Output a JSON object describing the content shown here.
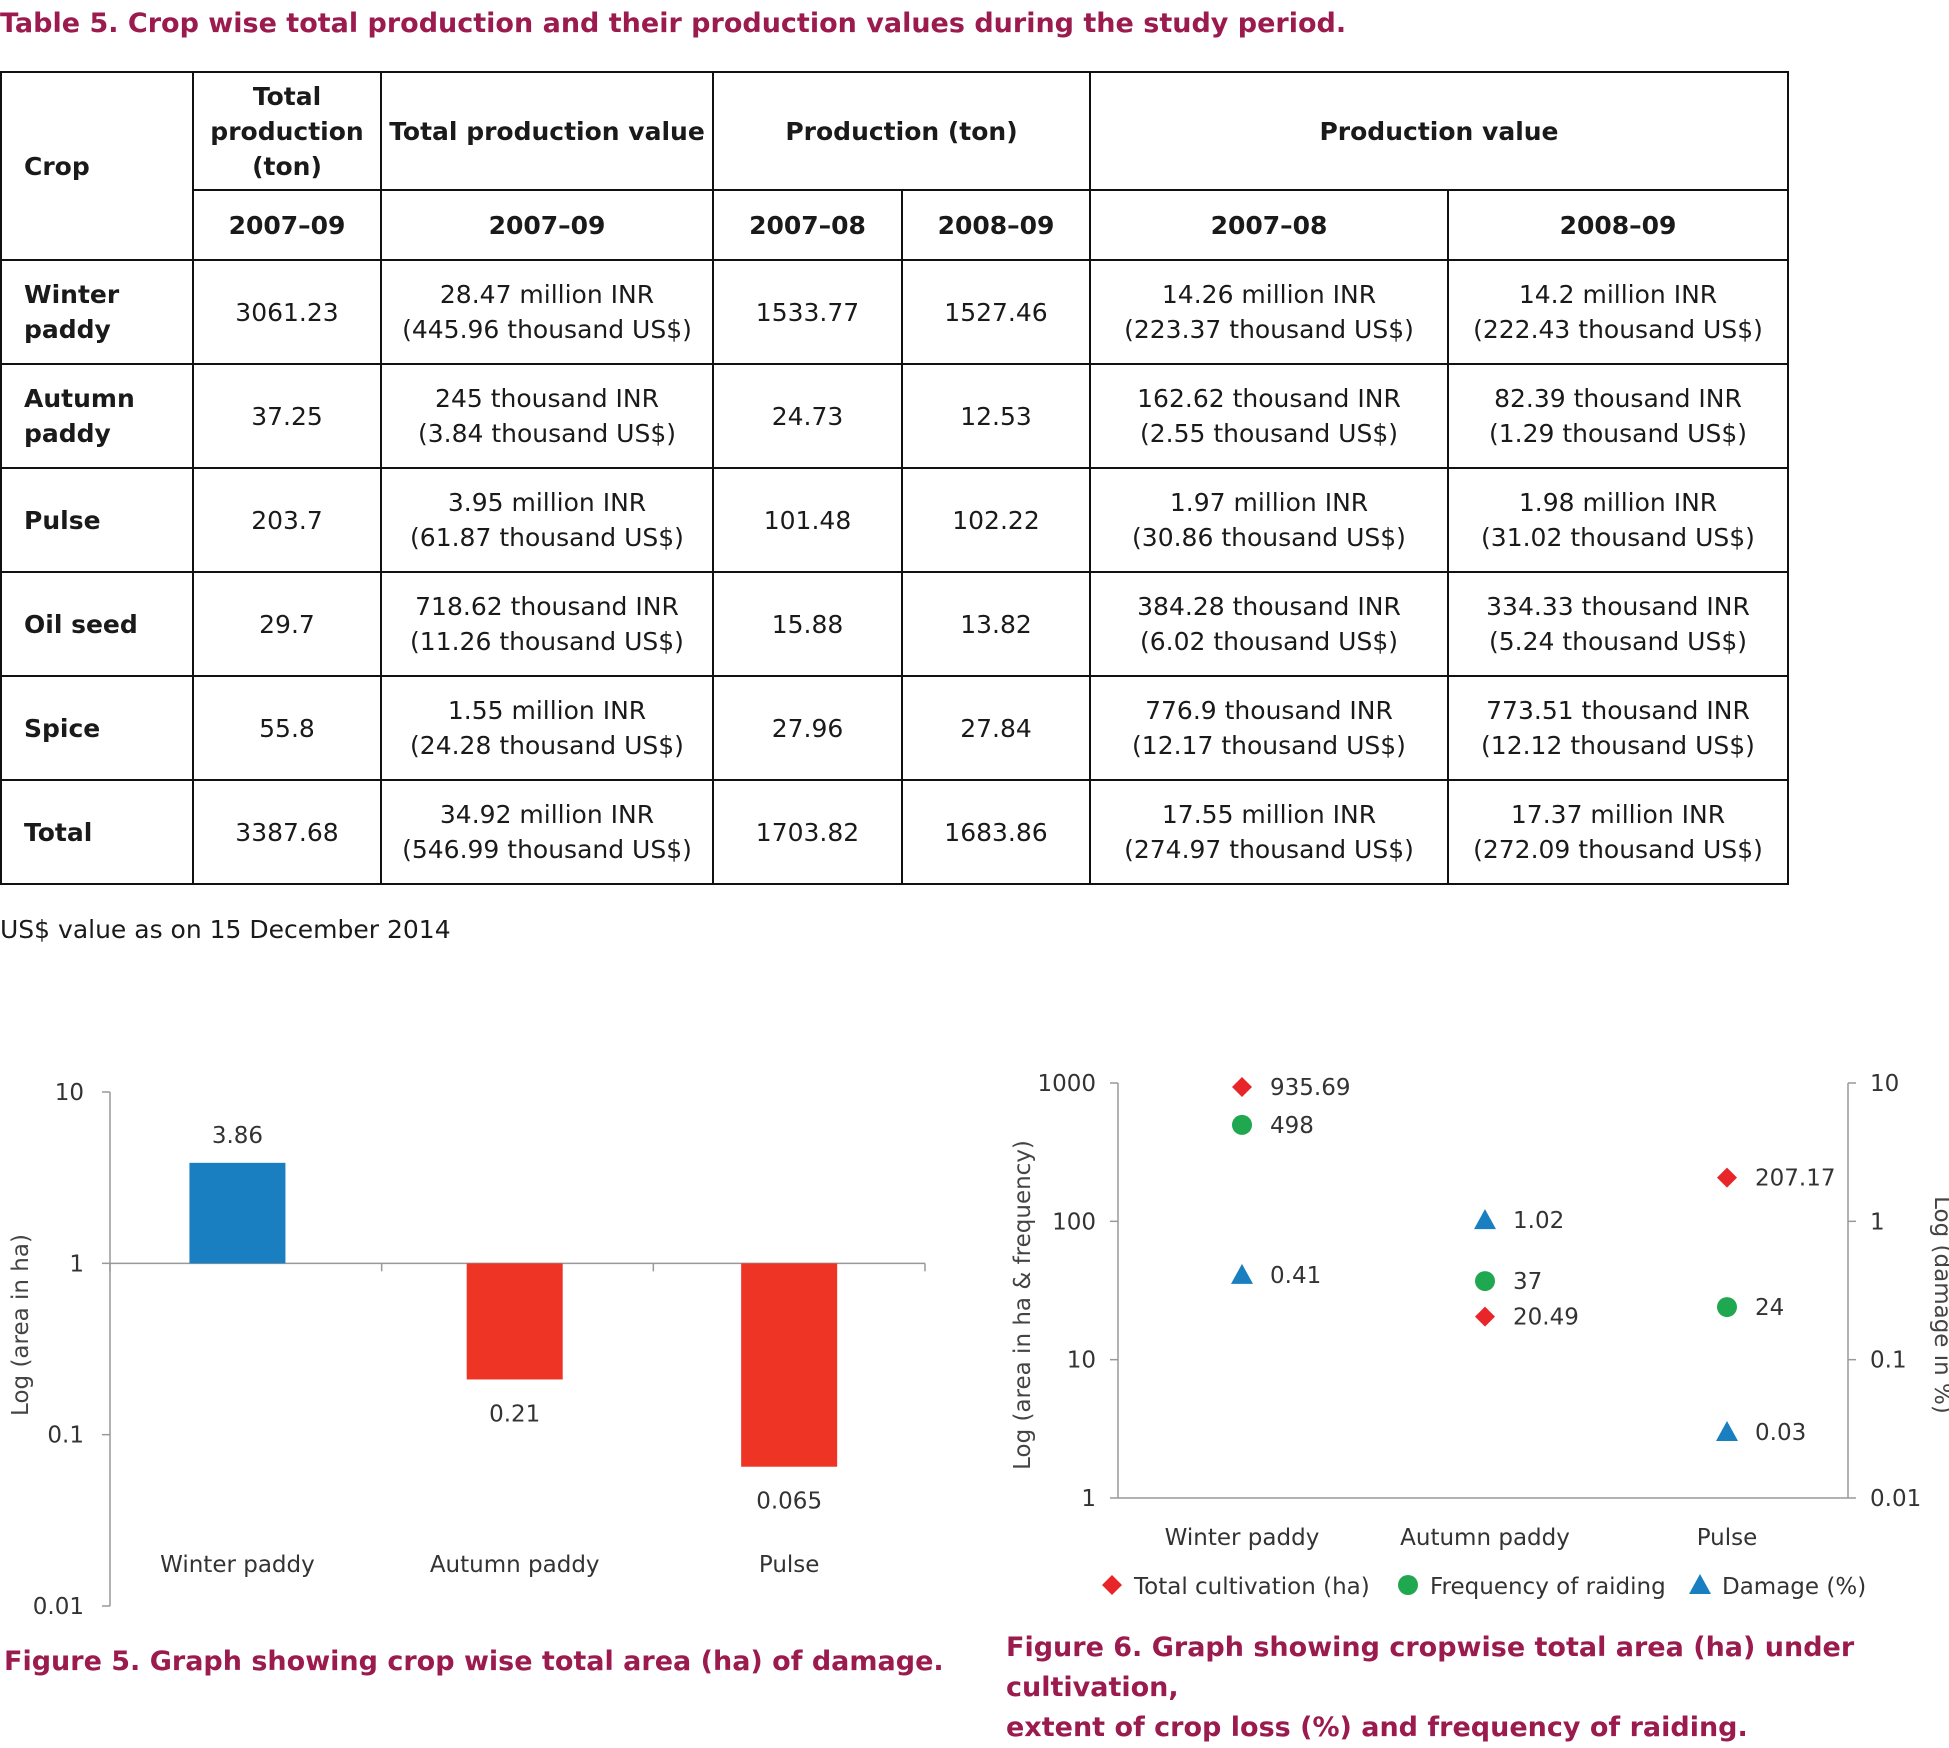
{
  "table": {
    "caption": "Table 5. Crop wise total production and their production values during the study period.",
    "headers": {
      "crop": "Crop",
      "total_production": "Total production (ton)",
      "total_production_value": "Total production value",
      "production": "Production (ton)",
      "production_value": "Production value",
      "period_all": "2007–09",
      "period_all2": "2007–09",
      "period_1": "2007–08",
      "period_2": "2008–09",
      "period_3": "2007–08",
      "period_4": "2008–09"
    },
    "rows": [
      {
        "crop": "Winter paddy",
        "total": "3061.23",
        "value_inr": "28.47 million INR",
        "value_usd": "(445.96 thousand US$)",
        "p1": "1533.77",
        "p2": "1527.46",
        "v1_inr": "14.26 million INR",
        "v1_usd": "(223.37 thousand US$)",
        "v2_inr": "14.2 million INR",
        "v2_usd": "(222.43 thousand US$)"
      },
      {
        "crop": "Autumn paddy",
        "total": "37.25",
        "value_inr": "245 thousand INR",
        "value_usd": "(3.84 thousand US$)",
        "p1": "24.73",
        "p2": "12.53",
        "v1_inr": "162.62 thousand INR",
        "v1_usd": "(2.55 thousand US$)",
        "v2_inr": "82.39 thousand INR",
        "v2_usd": "(1.29 thousand US$)"
      },
      {
        "crop": "Pulse",
        "total": "203.7",
        "value_inr": "3.95 million INR",
        "value_usd": "(61.87 thousand US$)",
        "p1": "101.48",
        "p2": "102.22",
        "v1_inr": "1.97 million INR",
        "v1_usd": "(30.86 thousand US$)",
        "v2_inr": "1.98 million INR",
        "v2_usd": "(31.02 thousand US$)"
      },
      {
        "crop": "Oil seed",
        "total": "29.7",
        "value_inr": "718.62 thousand INR",
        "value_usd": "(11.26 thousand US$)",
        "p1": "15.88",
        "p2": "13.82",
        "v1_inr": "384.28 thousand INR",
        "v1_usd": "(6.02 thousand US$)",
        "v2_inr": "334.33 thousand INR",
        "v2_usd": "(5.24 thousand US$)"
      },
      {
        "crop": "Spice",
        "total": "55.8",
        "value_inr": "1.55 million INR",
        "value_usd": "(24.28 thousand US$)",
        "p1": "27.96",
        "p2": "27.84",
        "v1_inr": "776.9 thousand INR",
        "v1_usd": "(12.17 thousand US$)",
        "v2_inr": "773.51 thousand INR",
        "v2_usd": "(12.12 thousand US$)"
      },
      {
        "crop": "Total",
        "total": "3387.68",
        "value_inr": "34.92 million INR",
        "value_usd": "(546.99 thousand US$)",
        "p1": "1703.82",
        "p2": "1683.86",
        "v1_inr": "17.55 million INR",
        "v1_usd": "(274.97 thousand US$)",
        "v2_inr": "17.37 million INR",
        "v2_usd": "(272.09 thousand US$)"
      }
    ],
    "note": "US$ value as on 15 December 2014"
  },
  "figure5": {
    "caption": "Figure 5. Graph showing crop wise total area (ha) of damage."
  },
  "figure6": {
    "caption_line1": "Figure 6. Graph showing cropwise total area (ha) under cultivation,",
    "caption_line2": "extent of crop loss (%) and frequency of raiding."
  },
  "colors": {
    "caption": "#9b1b4f",
    "bar_positive": "#1a7fc1",
    "bar_negative": "#ee3424",
    "green": "#1fa84f",
    "red": "#e8262a",
    "blue": "#1a7fc1"
  },
  "chart_data": [
    {
      "type": "bar",
      "title": "",
      "ylabel": "Log (area in ha)",
      "xlabel": "",
      "yscale": "log",
      "ylim": [
        0.01,
        10
      ],
      "baseline": 1,
      "yticks": [
        "10",
        "1",
        "0.1",
        "0.01"
      ],
      "categories": [
        "Winter paddy",
        "Autumn paddy",
        "Pulse"
      ],
      "values": [
        3.86,
        0.21,
        0.065
      ],
      "labels": [
        "3.86",
        "0.21",
        "0.065"
      ]
    },
    {
      "type": "scatter",
      "title": "",
      "ylabel_left": "Log (area in ha & frequency)",
      "ylabel_right": "Log (damage in %)",
      "yscale": "log",
      "ylim_left": [
        1,
        1000
      ],
      "ylim_right": [
        0.01,
        10
      ],
      "yticks_left": [
        "1000",
        "100",
        "10",
        "1"
      ],
      "yticks_right": [
        "10",
        "1",
        "0.1",
        "0.01"
      ],
      "categories": [
        "Winter paddy",
        "Autumn paddy",
        "Pulse"
      ],
      "series": [
        {
          "name": "Total cultivation (ha)",
          "marker": "diamond",
          "axis": "left",
          "values": [
            935.69,
            20.49,
            207.17
          ],
          "labels": [
            "935.69",
            "20.49",
            "207.17"
          ]
        },
        {
          "name": "Frequency of raiding",
          "marker": "circle",
          "axis": "left",
          "values": [
            498,
            37,
            24
          ],
          "labels": [
            "498",
            "37",
            "24"
          ]
        },
        {
          "name": "Damage (%)",
          "marker": "triangle",
          "axis": "right",
          "values": [
            0.41,
            1.02,
            0.03
          ],
          "labels": [
            "0.41",
            "1.02",
            "0.03"
          ]
        }
      ]
    }
  ]
}
